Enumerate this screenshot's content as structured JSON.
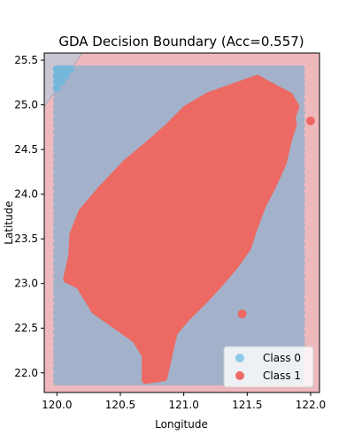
{
  "chart_data": {
    "type": "scatter",
    "title": "GDA Decision Boundary (Acc=0.557)",
    "xlabel": "Longitude",
    "ylabel": "Latitude",
    "xlim": [
      119.9,
      122.07
    ],
    "ylim": [
      21.78,
      25.58
    ],
    "xticks": [
      "120.0",
      "120.5",
      "121.0",
      "121.5",
      "122.0"
    ],
    "yticks": [
      "22.0",
      "22.5",
      "23.0",
      "23.5",
      "24.0",
      "24.5",
      "25.0",
      "25.5"
    ],
    "grid": false,
    "legend_position": "lower-right",
    "decision_regions": {
      "class_0_color": "#b9dcee",
      "class_1_color": "#f2c9cc",
      "boundary_line": [
        [
          119.9,
          24.98
        ],
        [
          120.2,
          25.58
        ]
      ]
    },
    "series": [
      {
        "name": "Class 0",
        "color": "#7fbfe0",
        "description_region": "grid points covering lon 120.0-121.95, lat 21.9-25.45 outside island",
        "bounds": {
          "x": [
            120.0,
            121.95
          ],
          "y": [
            21.9,
            25.45
          ]
        }
      },
      {
        "name": "Class 1",
        "color": "#ec6a63",
        "outline": [
          [
            121.58,
            25.29
          ],
          [
            121.72,
            25.18
          ],
          [
            121.83,
            25.1
          ],
          [
            121.88,
            24.98
          ],
          [
            121.85,
            24.86
          ],
          [
            121.86,
            24.78
          ],
          [
            121.82,
            24.6
          ],
          [
            121.78,
            24.35
          ],
          [
            121.7,
            24.1
          ],
          [
            121.62,
            23.88
          ],
          [
            121.55,
            23.62
          ],
          [
            121.5,
            23.4
          ],
          [
            121.4,
            23.2
          ],
          [
            121.28,
            23.0
          ],
          [
            121.15,
            22.8
          ],
          [
            121.02,
            22.62
          ],
          [
            120.92,
            22.45
          ],
          [
            120.88,
            22.2
          ],
          [
            120.84,
            21.95
          ],
          [
            120.7,
            21.92
          ],
          [
            120.7,
            22.2
          ],
          [
            120.62,
            22.38
          ],
          [
            120.45,
            22.55
          ],
          [
            120.3,
            22.7
          ],
          [
            120.18,
            22.98
          ],
          [
            120.08,
            23.05
          ],
          [
            120.12,
            23.3
          ],
          [
            120.13,
            23.55
          ],
          [
            120.2,
            23.8
          ],
          [
            120.35,
            24.05
          ],
          [
            120.55,
            24.35
          ],
          [
            120.72,
            24.55
          ],
          [
            120.88,
            24.75
          ],
          [
            121.02,
            24.95
          ],
          [
            121.2,
            25.1
          ],
          [
            121.4,
            25.2
          ]
        ],
        "outliers": [
          [
            122.0,
            24.82
          ],
          [
            121.46,
            22.66
          ]
        ]
      }
    ]
  }
}
